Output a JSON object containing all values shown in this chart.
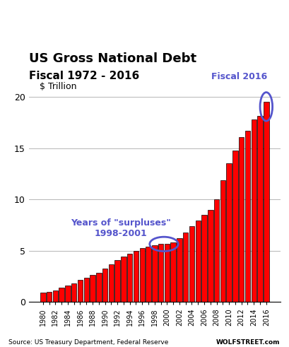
{
  "title_line1": "US Gross National Debt",
  "title_line2": "Fiscal 1972 - 2016",
  "ylabel": "$ Trillion",
  "source_left": "Source: US Treasury Department, Federal Reserve",
  "source_right": "WOLFSTREET.com",
  "ylim": [
    0,
    20
  ],
  "yticks": [
    0,
    5,
    10,
    15,
    20
  ],
  "bar_color": "#ff0000",
  "bar_edge_color": "#000000",
  "annotation_surpluses": "Years of \"surpluses\"\n1998-2001",
  "annotation_2016": "Fiscal 2016",
  "annotation_color": "#5555cc",
  "years": [
    1980,
    1981,
    1982,
    1983,
    1984,
    1985,
    1986,
    1987,
    1988,
    1989,
    1990,
    1991,
    1992,
    1993,
    1994,
    1995,
    1996,
    1997,
    1998,
    1999,
    2000,
    2001,
    2002,
    2003,
    2004,
    2005,
    2006,
    2007,
    2008,
    2009,
    2010,
    2011,
    2012,
    2013,
    2014,
    2015,
    2016
  ],
  "values": [
    0.91,
    0.998,
    1.142,
    1.377,
    1.572,
    1.823,
    2.125,
    2.346,
    2.601,
    2.868,
    3.233,
    3.665,
    4.064,
    4.411,
    4.693,
    4.974,
    5.225,
    5.413,
    5.526,
    5.656,
    5.674,
    5.807,
    6.228,
    6.783,
    7.379,
    7.933,
    8.507,
    9.008,
    10.025,
    11.91,
    13.562,
    14.79,
    16.066,
    16.738,
    17.824,
    18.151,
    19.573
  ]
}
